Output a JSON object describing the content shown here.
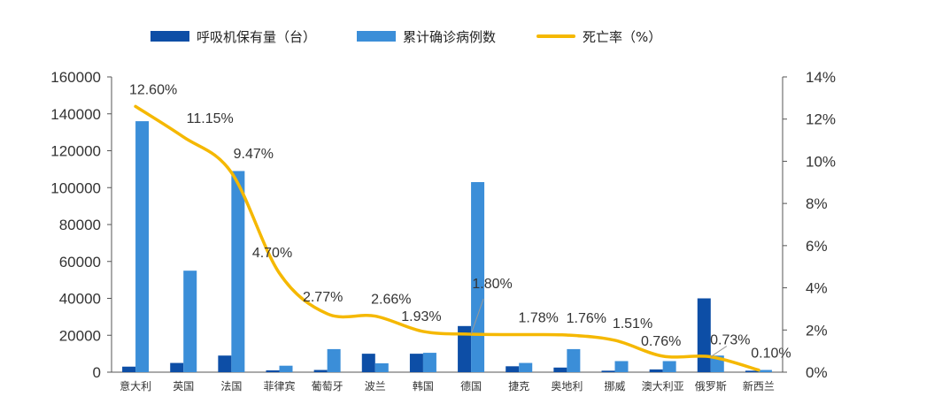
{
  "chart_data": {
    "type": "bar",
    "title": "",
    "xlabel": "",
    "ylabel": "",
    "categories": [
      "意大利",
      "英国",
      "法国",
      "菲律宾",
      "葡萄牙",
      "波兰",
      "韩国",
      "德国",
      "捷克",
      "奥地利",
      "挪威",
      "澳大利亚",
      "俄罗斯",
      "新西兰"
    ],
    "series": [
      {
        "name": "呼吸机保有量（台）",
        "axis": "left",
        "kind": "bar",
        "color": "#0d4ea6",
        "values": [
          3000,
          5000,
          9000,
          1000,
          1200,
          10000,
          10000,
          25000,
          3200,
          2500,
          800,
          1500,
          40000,
          800
        ]
      },
      {
        "name": "累计确诊病例数",
        "axis": "left",
        "kind": "bar",
        "color": "#3b8ed8",
        "values": [
          136000,
          55000,
          109000,
          3500,
          12500,
          4800,
          10500,
          103000,
          5000,
          12500,
          6000,
          6000,
          9000,
          1200
        ]
      },
      {
        "name": "死亡率（%）",
        "axis": "right",
        "kind": "line",
        "color": "#f5b800",
        "values": [
          12.6,
          11.15,
          9.47,
          4.7,
          2.77,
          2.66,
          1.93,
          1.8,
          1.78,
          1.76,
          1.51,
          0.76,
          0.73,
          0.1
        ],
        "labels": [
          "12.60%",
          "11.15%",
          "9.47%",
          "4.70%",
          "2.77%",
          "2.66%",
          "1.93%",
          "1.80%",
          "1.78%",
          "1.76%",
          "1.51%",
          "0.76%",
          "0.73%",
          "0.10%"
        ]
      }
    ],
    "y_left": {
      "min": 0,
      "max": 160000,
      "ticks": [
        "0",
        "20000",
        "40000",
        "60000",
        "80000",
        "100000",
        "120000",
        "140000",
        "160000"
      ]
    },
    "y_right": {
      "min": 0,
      "max": 14,
      "ticks": [
        "0%",
        "2%",
        "4%",
        "6%",
        "8%",
        "10%",
        "12%",
        "14%"
      ]
    },
    "grid": false,
    "legend_position": "top"
  }
}
